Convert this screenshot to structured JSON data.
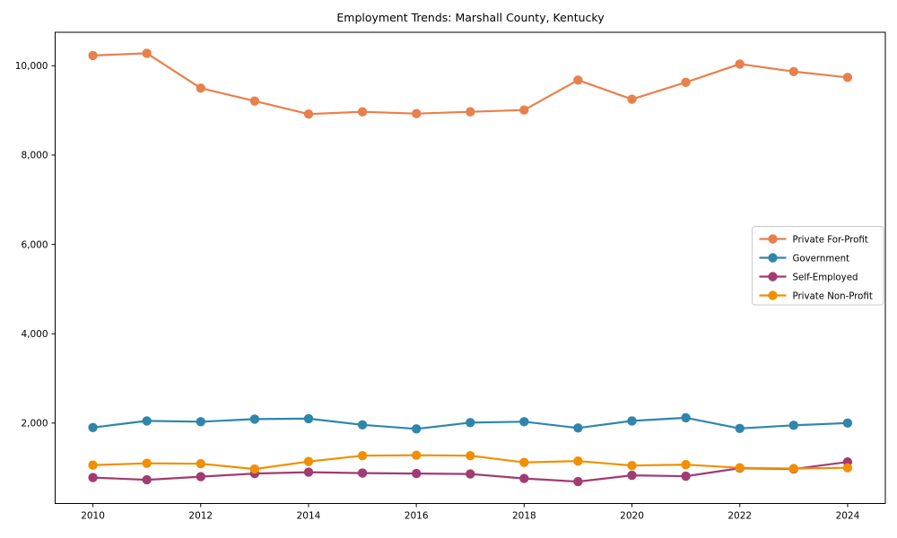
{
  "figure": {
    "background": "#ffffff",
    "spine_color": "#000000",
    "tick_color": "#000000",
    "legend_border_color": "#cccccc",
    "legend_background": "#ffffff"
  },
  "chart_data": {
    "type": "line",
    "title": "Employment Trends: Marshall County, Kentucky",
    "xlabel": "",
    "ylabel": "",
    "grid": false,
    "legend_position": "center right",
    "xlim": [
      2009.3,
      2024.7
    ],
    "ylim": [
      200,
      10750
    ],
    "x": [
      2010,
      2011,
      2012,
      2013,
      2014,
      2015,
      2016,
      2017,
      2018,
      2019,
      2020,
      2021,
      2022,
      2023,
      2024
    ],
    "x_ticks": [
      {
        "value": 2010,
        "label": "2010"
      },
      {
        "value": 2012,
        "label": "2012"
      },
      {
        "value": 2014,
        "label": "2014"
      },
      {
        "value": 2016,
        "label": "2016"
      },
      {
        "value": 2018,
        "label": "2018"
      },
      {
        "value": 2020,
        "label": "2020"
      },
      {
        "value": 2022,
        "label": "2022"
      },
      {
        "value": 2024,
        "label": "2024"
      }
    ],
    "y_ticks": [
      {
        "value": 2000,
        "label": "2,000"
      },
      {
        "value": 4000,
        "label": "4,000"
      },
      {
        "value": 6000,
        "label": "6,000"
      },
      {
        "value": 8000,
        "label": "8,000"
      },
      {
        "value": 10000,
        "label": "10,000"
      }
    ],
    "series": [
      {
        "name": "Private For-Profit",
        "color": "#e8804d",
        "values": [
          10230,
          10280,
          9500,
          9210,
          8920,
          8970,
          8930,
          8970,
          9010,
          9680,
          9250,
          9630,
          10040,
          9870,
          9740
        ]
      },
      {
        "name": "Government",
        "color": "#2e86ab",
        "values": [
          1900,
          2050,
          2030,
          2090,
          2100,
          1960,
          1870,
          2010,
          2030,
          1890,
          2050,
          2120,
          1880,
          1950,
          2000
        ]
      },
      {
        "name": "Self-Employed",
        "color": "#a23b72",
        "values": [
          780,
          730,
          800,
          870,
          900,
          880,
          870,
          860,
          760,
          690,
          830,
          810,
          990,
          970,
          1130
        ]
      },
      {
        "name": "Private Non-Profit",
        "color": "#f18f01",
        "values": [
          1060,
          1100,
          1090,
          970,
          1140,
          1270,
          1280,
          1270,
          1120,
          1150,
          1050,
          1070,
          1000,
          980,
          1000
        ]
      }
    ]
  }
}
